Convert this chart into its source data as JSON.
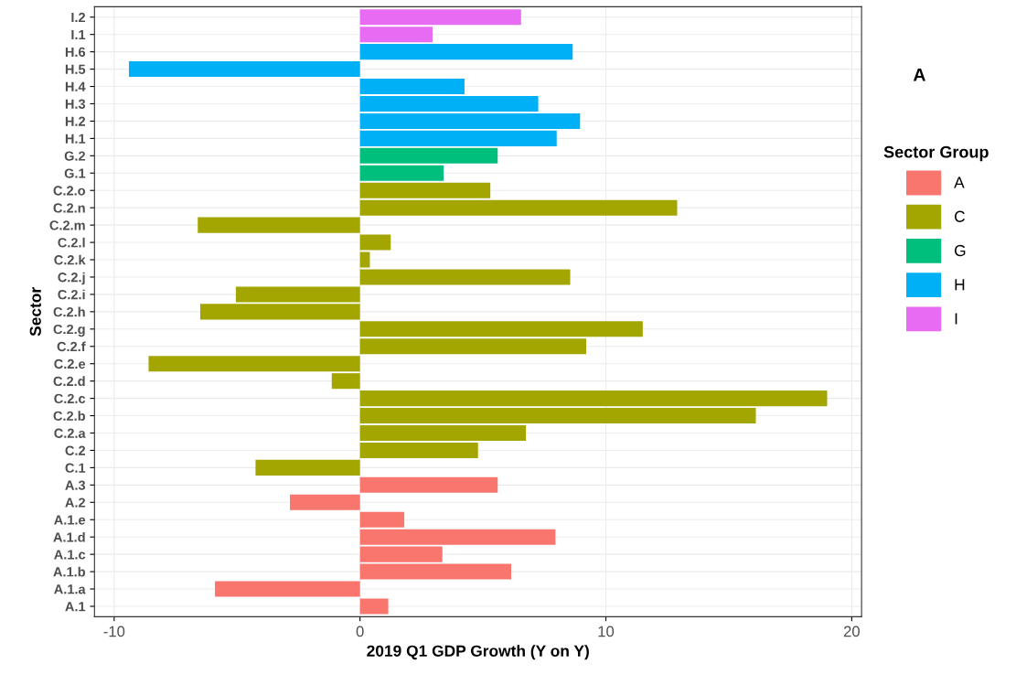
{
  "chart_data": {
    "type": "bar",
    "orientation": "horizontal",
    "xlabel": "2019 Q1 GDP Growth (Y on Y)",
    "ylabel": "Sector",
    "legend_title": "Sector Group",
    "annotations": [
      "A"
    ],
    "categories": [
      "I.2",
      "I.1",
      "H.6",
      "H.5",
      "H.4",
      "H.3",
      "H.2",
      "H.1",
      "G.2",
      "G.1",
      "C.2.o",
      "C.2.n",
      "C.2.m",
      "C.2.l",
      "C.2.k",
      "C.2.j",
      "C.2.i",
      "C.2.h",
      "C.2.g",
      "C.2.f",
      "C.2.e",
      "C.2.d",
      "C.2.c",
      "C.2.b",
      "C.2.a",
      "C.2",
      "C.1",
      "A.3",
      "A.2",
      "A.1.e",
      "A.1.d",
      "A.1.c",
      "A.1.b",
      "A.1.a",
      "A.1"
    ],
    "series": [
      {
        "name": "A",
        "color": "#f8766d",
        "values": [
          null,
          null,
          null,
          null,
          null,
          null,
          null,
          null,
          null,
          null,
          null,
          null,
          null,
          null,
          null,
          null,
          null,
          null,
          null,
          null,
          null,
          null,
          null,
          null,
          null,
          null,
          null,
          5.6,
          -2.85,
          1.8,
          7.95,
          3.35,
          6.15,
          -5.9,
          1.15
        ]
      },
      {
        "name": "C",
        "color": "#a3a500",
        "values": [
          null,
          null,
          null,
          null,
          null,
          null,
          null,
          null,
          null,
          null,
          5.3,
          12.9,
          -6.6,
          1.25,
          0.4,
          8.55,
          -5.05,
          -6.5,
          11.5,
          9.2,
          -8.6,
          -1.15,
          19.0,
          16.1,
          6.75,
          4.8,
          -4.25,
          null,
          null,
          null,
          null,
          null,
          null,
          null,
          null
        ]
      },
      {
        "name": "G",
        "color": "#00bf7d",
        "values": [
          null,
          null,
          null,
          null,
          null,
          null,
          null,
          null,
          5.6,
          3.4,
          null,
          null,
          null,
          null,
          null,
          null,
          null,
          null,
          null,
          null,
          null,
          null,
          null,
          null,
          null,
          null,
          null,
          null,
          null,
          null,
          null,
          null,
          null,
          null,
          null
        ]
      },
      {
        "name": "H",
        "color": "#00b0f6",
        "values": [
          null,
          null,
          8.65,
          -9.4,
          4.25,
          7.25,
          8.95,
          8.0,
          null,
          null,
          null,
          null,
          null,
          null,
          null,
          null,
          null,
          null,
          null,
          null,
          null,
          null,
          null,
          null,
          null,
          null,
          null,
          null,
          null,
          null,
          null,
          null,
          null,
          null,
          null
        ]
      },
      {
        "name": "I",
        "color": "#e76bf3",
        "values": [
          6.55,
          2.95,
          null,
          null,
          null,
          null,
          null,
          null,
          null,
          null,
          null,
          null,
          null,
          null,
          null,
          null,
          null,
          null,
          null,
          null,
          null,
          null,
          null,
          null,
          null,
          null,
          null,
          null,
          null,
          null,
          null,
          null,
          null,
          null,
          null
        ]
      }
    ],
    "xlim": [
      -10.8,
      20.4
    ],
    "xticks": [
      {
        "value": -10,
        "label": "-10"
      },
      0,
      10,
      20
    ],
    "grid": true,
    "legend": "right"
  }
}
